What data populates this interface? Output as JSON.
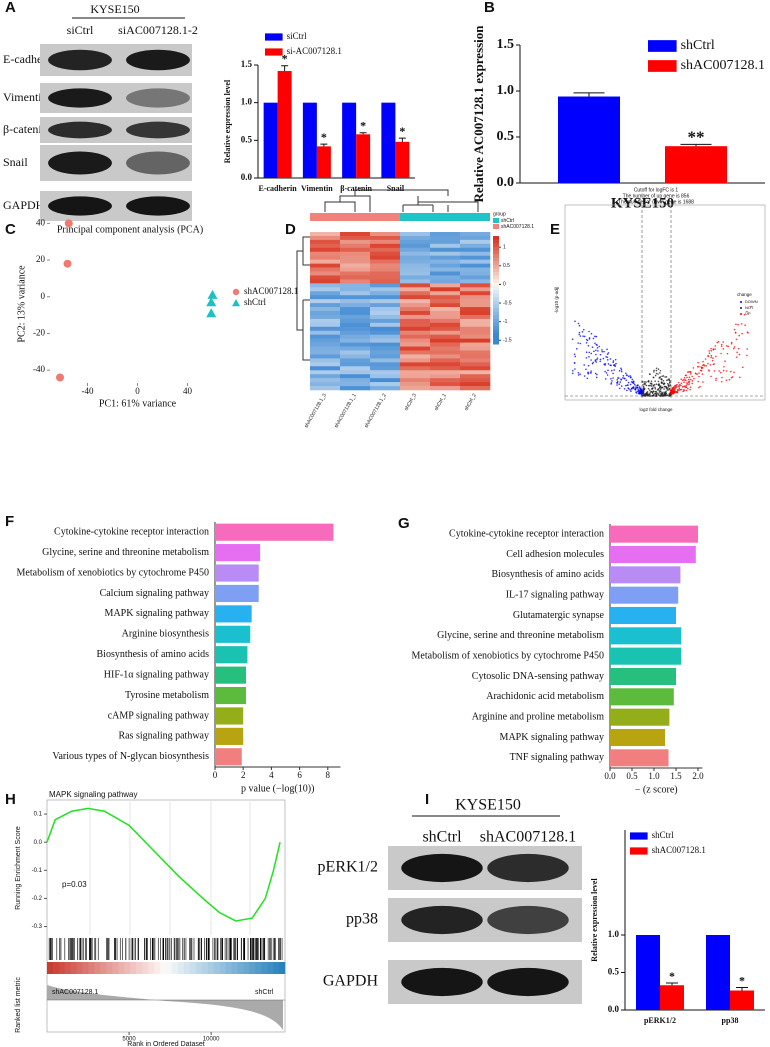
{
  "blots": [
    {
      "panel": "A",
      "header": "KYSE150",
      "columns": [
        "siCtrl",
        "siAC007128.1-2"
      ],
      "rows": [
        "E-cadherin",
        "Vimentin",
        "β-catenin",
        "Snail",
        "GAPDH"
      ]
    },
    {
      "panel": "I",
      "header": "KYSE150",
      "columns": [
        "shCtrl",
        "shAC007128.1"
      ],
      "rows": [
        "pERK1/2",
        "pp38",
        "GAPDH"
      ]
    }
  ],
  "chart_data": [
    {
      "type": "bar",
      "ylabel": "Relative expression level",
      "categories": [
        "E-cadherin",
        "Vimentin",
        "β-catenin",
        "Snail"
      ],
      "series": [
        {
          "name": "siCtrl",
          "color": "#0000ff",
          "values": [
            1,
            1,
            1,
            1
          ]
        },
        {
          "name": "si-AC007128.1",
          "color": "#ff0000",
          "values": [
            1.42,
            0.42,
            0.58,
            0.48
          ],
          "errors": [
            0.07,
            0.03,
            0.02,
            0.05
          ],
          "annotations": [
            "*",
            "*",
            "*",
            "*"
          ]
        }
      ],
      "ylim": [
        0,
        1.5
      ],
      "yticks": [
        {
          "value": 0,
          "label": "0.0"
        },
        {
          "value": 0.5,
          "label": "0.5"
        },
        {
          "value": 1,
          "label": "1.0"
        },
        {
          "value": 1.5,
          "label": "1.5"
        }
      ]
    },
    {
      "type": "bar",
      "panel": "B",
      "ylabel": "Relative AC007128.1 expression",
      "categories": [
        "KYSE150"
      ],
      "series": [
        {
          "name": "shCtrl",
          "color": "#0000ff",
          "values": [
            0.94
          ],
          "errors": [
            0.04
          ]
        },
        {
          "name": "shAC007128.1",
          "color": "#ff0000",
          "values": [
            0.4
          ],
          "errors": [
            0.02
          ],
          "annotations": [
            "**"
          ]
        }
      ],
      "ylim": [
        0,
        1.5
      ],
      "yticks": [
        {
          "value": 0,
          "label": "0.0"
        },
        {
          "value": 0.5,
          "label": "0.5"
        },
        {
          "value": 1,
          "label": "1.0"
        },
        {
          "value": 1.5,
          "label": "1.5"
        }
      ]
    },
    {
      "type": "scatter",
      "panel": "C",
      "title": "Principal component analysis (PCA)",
      "xlabel": "PC1: 61% variance",
      "ylabel": "PC2: 13% variance",
      "xlim": [
        -70,
        70
      ],
      "ylim": [
        -47,
        50
      ],
      "xticks": [
        -40,
        0,
        40
      ],
      "yticks": [
        40,
        20,
        0,
        -20,
        -40
      ],
      "series": [
        {
          "name": "shAC007128.1",
          "color": "#f07a72",
          "marker": "circle",
          "x": [
            -55,
            -56,
            -62
          ],
          "values": [
            40,
            18,
            -44
          ]
        },
        {
          "name": "shCtrl",
          "color": "#1fbfc4",
          "marker": "triangle",
          "x": [
            60,
            59,
            59
          ],
          "values": [
            1,
            -3,
            -9
          ]
        }
      ]
    },
    {
      "type": "heatmap",
      "panel": "D",
      "legend_title": "group",
      "groups": [
        {
          "name": "shCtrl",
          "color": "#1fc3c8"
        },
        {
          "name": "shAC007128.1",
          "color": "#f2817b"
        }
      ],
      "columns": [
        "shAC007128.1_3",
        "shAC007128.1_1",
        "shAC007128.1_2",
        "shCtrl_3",
        "shCtrl_1",
        "shCtrl_2"
      ],
      "colorbar_ticks": [
        1,
        0.5,
        0,
        -0.5,
        -1,
        -1.5
      ]
    },
    {
      "type": "volcano",
      "panel": "E",
      "title_lines": [
        "Cutoff for logFC is 1",
        "The number of up gene is 856",
        "The number of down gene is 1688"
      ],
      "xlabel": "log2 fold change",
      "ylabel": "-log10 (p-adj)",
      "legend_title": "change",
      "legend": [
        {
          "name": "DOWN",
          "color": "#0000ff"
        },
        {
          "name": "NOT",
          "color": "#222222"
        },
        {
          "name": "UP",
          "color": "#ff0000"
        }
      ]
    },
    {
      "type": "hbar",
      "panel": "F",
      "xlabel": "p value (−log(10))",
      "categories": [
        "Cytokine-cytokine receptor interaction",
        "Glycine, serine and threonine metabolism",
        "Metabolism of xenobiotics by cytochrome P450",
        "Calcium signaling pathway",
        "MAPK signaling pathway",
        "Arginine biosynthesis",
        "Biosynthesis of amino acids",
        "HIF-1α signaling pathway",
        "Tyrosine metabolism",
        "cAMP signaling pathway",
        "Ras signaling pathway",
        "Various types of N-glycan biosynthesis"
      ],
      "values": [
        8.4,
        3.2,
        3.1,
        3.1,
        2.6,
        2.5,
        2.3,
        2.2,
        2.2,
        2.0,
        2.0,
        1.9
      ],
      "colors": [
        "#f66bbb",
        "#e66ef0",
        "#b98cf5",
        "#7f9ff5",
        "#27b1f0",
        "#1ac0cf",
        "#19c2b1",
        "#27bf7e",
        "#5cba3c",
        "#93ae18",
        "#b8a311",
        "#f27f7f"
      ],
      "xlim": [
        0,
        8.9
      ],
      "xticks": [
        0,
        2,
        4,
        6,
        8
      ]
    },
    {
      "type": "hbar",
      "panel": "G",
      "xlabel": "− (z score)",
      "categories": [
        "Cytokine-cytokine receptor interaction",
        "Cell adhesion molecules",
        "Biosynthesis of amino acids",
        "IL-17 signaling pathway",
        "Glutamatergic synapse",
        "Glycine, serine and threonine metabolism",
        "Metabolism of xenobiotics by cytochrome P450",
        "Cytosolic DNA-sensing pathway",
        "Arachidonic acid metabolism",
        "Arginine and proline metabolism",
        "MAPK signaling pathway",
        "TNF signaling pathway"
      ],
      "values": [
        2.0,
        1.95,
        1.6,
        1.55,
        1.5,
        1.62,
        1.62,
        1.5,
        1.45,
        1.35,
        1.25,
        1.33
      ],
      "colors": [
        "#f66bbb",
        "#e66ef0",
        "#b98cf5",
        "#7f9ff5",
        "#27b1f0",
        "#1ac0cf",
        "#19c2b1",
        "#27bf7e",
        "#5cba3c",
        "#93ae18",
        "#b8a311",
        "#f27f7f"
      ],
      "xlim": [
        0,
        2.1
      ],
      "xticks": [
        {
          "value": 0,
          "label": "0.0"
        },
        {
          "value": 0.5,
          "label": "0.5"
        },
        {
          "value": 1,
          "label": "1.0"
        },
        {
          "value": 1.5,
          "label": "1.5"
        },
        {
          "value": 2,
          "label": "2.0"
        }
      ]
    },
    {
      "type": "gsea",
      "panel": "H",
      "title": "MAPK signaling pathway",
      "ylabel": "Running Enrichment Score",
      "annotation": "p=0.03",
      "left_label": "shAC007128.1",
      "right_label": "shCtrl",
      "ylabel2": "Ranked list metric",
      "xlabel": "Rank in Ordered Dataset",
      "color": "#22e022",
      "x": [
        0,
        500,
        1500,
        2500,
        3500,
        5000,
        6500,
        8000,
        9500,
        10500,
        11500,
        12500,
        13300,
        13800,
        14200
      ],
      "values": [
        0.0,
        0.08,
        0.11,
        0.12,
        0.11,
        0.06,
        -0.03,
        -0.12,
        -0.2,
        -0.25,
        -0.28,
        -0.27,
        -0.2,
        -0.1,
        0.0
      ],
      "xlim": [
        0,
        14500
      ],
      "ylim": [
        -0.33,
        0.15
      ],
      "xticks": [
        5000,
        10000
      ],
      "yticks": [
        0.1,
        {
          "value": 0,
          "label": "0.0"
        },
        -0.1,
        -0.2,
        -0.3
      ]
    },
    {
      "type": "bar",
      "ylabel": "Relative expression level",
      "categories": [
        "pERK1/2",
        "pp38"
      ],
      "series": [
        {
          "name": "shCtrl",
          "color": "#0000ff",
          "values": [
            1,
            1
          ]
        },
        {
          "name": "shAC007128.1",
          "color": "#ff0000",
          "values": [
            0.33,
            0.26
          ],
          "errors": [
            0.03,
            0.04
          ],
          "annotations": [
            "*",
            "*"
          ]
        }
      ],
      "ylim": [
        0,
        2.4
      ],
      "yticks": [
        {
          "value": 0,
          "label": "0.0"
        },
        {
          "value": 0.5,
          "label": "0.5"
        },
        {
          "value": 1,
          "label": "1.0"
        }
      ]
    }
  ]
}
